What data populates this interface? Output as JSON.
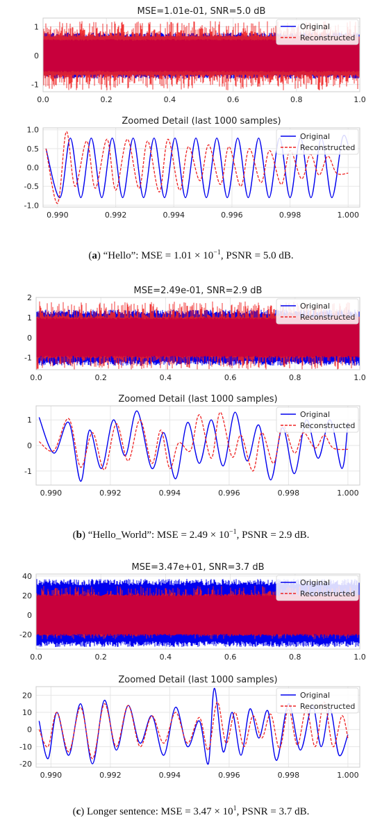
{
  "legend": {
    "original": "Original",
    "reconstructed": "Reconstructed"
  },
  "colors": {
    "original": "#0000ee",
    "reconstructed": "#ee2222",
    "overlap": "#c8003c",
    "grid": "#e6e6e6"
  },
  "panels": [
    {
      "caption": {
        "letter": "a",
        "text": "“Hello”: MSE = 1.01 × 10",
        "exp": "−1",
        "text2": ", PSNR = 5.0 dB."
      },
      "chart_data": [
        {
          "type": "line",
          "title": "MSE=1.01e-01, SNR=5.0 dB",
          "xlim": [
            0,
            1
          ],
          "ylim": [
            -1.25,
            1.3
          ],
          "xticks": [
            "0.0",
            "0.2",
            "0.4",
            "0.6",
            "0.8",
            "1.0"
          ],
          "yticks": [
            "-1",
            "0",
            "1"
          ],
          "ytick_values": [
            -1,
            0,
            1
          ],
          "xtick_values": [
            0,
            0.2,
            0.4,
            0.6,
            0.8,
            1.0
          ],
          "grid": true,
          "legend": "top-right",
          "series": [
            {
              "name": "Original",
              "amplitude_range": [
                -0.8,
                0.8
              ]
            },
            {
              "name": "Reconstructed",
              "amplitude_range": [
                -1.2,
                1.2
              ]
            }
          ]
        },
        {
          "type": "line",
          "title": "Zoomed Detail (last 1000 samples)",
          "xlim": [
            0.9895,
            1.0004
          ],
          "ylim": [
            -1.05,
            1.05
          ],
          "xticks": [
            "0.990",
            "0.992",
            "0.994",
            "0.996",
            "0.998",
            "1.000"
          ],
          "xtick_values": [
            0.99,
            0.992,
            0.994,
            0.996,
            0.998,
            1.0
          ],
          "yticks": [
            "1.0",
            "0.5",
            "0.0",
            "-0.5",
            "-1.0"
          ],
          "ytick_values": [
            1.0,
            0.5,
            0.0,
            -0.5,
            -1.0
          ],
          "grid": true,
          "legend": "top-right",
          "series": [
            {
              "name": "Original",
              "x": [
                0.9896,
                0.99008,
                0.99044,
                0.9908,
                0.99116,
                0.99152,
                0.99188,
                0.99224,
                0.9926,
                0.99296,
                0.99332,
                0.99368,
                0.99404,
                0.9944,
                0.99476,
                0.99512,
                0.99548,
                0.99584,
                0.9962,
                0.99656,
                0.99692,
                0.99728,
                0.99764,
                0.998,
                0.99836,
                0.99872,
                0.99908,
                0.99944,
                0.9998,
                1.0
              ],
              "y": [
                0.5,
                -0.8,
                0.78,
                -0.8,
                0.78,
                -0.8,
                0.78,
                -0.8,
                0.78,
                -0.8,
                0.78,
                -0.8,
                0.78,
                -0.8,
                0.78,
                -0.8,
                0.78,
                -0.8,
                0.78,
                -0.8,
                0.78,
                -0.8,
                0.78,
                -0.8,
                0.78,
                -0.8,
                0.78,
                -0.8,
                0.78,
                0.6
              ]
            },
            {
              "name": "Reconstructed",
              "x": [
                0.9896,
                0.99,
                0.9903,
                0.9906,
                0.991,
                0.9913,
                0.9917,
                0.992,
                0.9924,
                0.9928,
                0.9931,
                0.9935,
                0.9938,
                0.9942,
                0.9945,
                0.9949,
                0.9952,
                0.9956,
                0.9959,
                0.9963,
                0.9966,
                0.997,
                0.9973,
                0.9977,
                0.998,
                0.9984,
                0.9987,
                0.999,
                0.9993,
                0.9996,
                1.0
              ],
              "y": [
                0.5,
                -0.95,
                0.95,
                -0.5,
                0.7,
                -0.55,
                0.75,
                -0.6,
                0.75,
                -0.55,
                0.7,
                -0.65,
                0.75,
                -0.6,
                0.55,
                -0.35,
                0.6,
                -0.45,
                0.55,
                -0.5,
                0.5,
                -0.4,
                0.45,
                -0.45,
                0.45,
                -0.3,
                0.35,
                -0.2,
                0.3,
                -0.15,
                -0.15
              ]
            }
          ]
        }
      ]
    },
    {
      "caption": {
        "letter": "b",
        "text": "“Hello_World”: MSE = 2.49 × 10",
        "exp": "−1",
        "text2": ", PSNR = 2.9 dB."
      },
      "chart_data": [
        {
          "type": "line",
          "title": "MSE=2.49e-01, SNR=2.9 dB",
          "xlim": [
            0,
            1
          ],
          "ylim": [
            -1.6,
            2.0
          ],
          "xticks": [
            "0.0",
            "0.2",
            "0.4",
            "0.6",
            "0.8",
            "1.0"
          ],
          "xtick_values": [
            0,
            0.2,
            0.4,
            0.6,
            0.8,
            1.0
          ],
          "yticks": [
            "2",
            "1",
            "0",
            "-1"
          ],
          "ytick_values": [
            2,
            1,
            0,
            -1
          ],
          "grid": true,
          "legend": "top-right",
          "series": [
            {
              "name": "Original",
              "amplitude_range": [
                -1.4,
                1.4
              ]
            },
            {
              "name": "Reconstructed",
              "amplitude_range": [
                -1.6,
                1.8
              ]
            }
          ]
        },
        {
          "type": "line",
          "title": "Zoomed Detail (last 1000 samples)",
          "xlim": [
            0.9895,
            1.0004
          ],
          "ylim": [
            -1.55,
            1.55
          ],
          "xticks": [
            "0.990",
            "0.992",
            "0.994",
            "0.996",
            "0.998",
            "1.000"
          ],
          "xtick_values": [
            0.99,
            0.992,
            0.994,
            0.996,
            0.998,
            1.0
          ],
          "yticks": [
            "1",
            "0",
            "-1"
          ],
          "ytick_values": [
            1,
            0,
            -1
          ],
          "grid": true,
          "legend": "top-right",
          "series": [
            {
              "name": "Original",
              "x": [
                0.9896,
                0.9901,
                0.9906,
                0.991,
                0.9913,
                0.9917,
                0.9921,
                0.9925,
                0.9929,
                0.9934,
                0.9938,
                0.9942,
                0.9946,
                0.995,
                0.9954,
                0.9958,
                0.9962,
                0.9966,
                0.997,
                0.9974,
                0.9978,
                0.9982,
                0.9986,
                0.999,
                0.9994,
                0.9998,
                1.0
              ],
              "y": [
                1.1,
                -0.3,
                0.9,
                -1.4,
                0.6,
                -0.9,
                1.0,
                -0.4,
                1.35,
                -0.9,
                0.5,
                -1.3,
                0.9,
                -0.7,
                1.0,
                -0.8,
                1.3,
                -0.6,
                0.8,
                -1.35,
                0.7,
                -1.1,
                1.0,
                -0.5,
                1.0,
                -0.9,
                0.9
              ]
            },
            {
              "name": "Reconstructed",
              "x": [
                0.9896,
                0.9901,
                0.9906,
                0.991,
                0.9914,
                0.9918,
                0.9922,
                0.9926,
                0.993,
                0.9934,
                0.9937,
                0.994,
                0.9943,
                0.9947,
                0.995,
                0.9954,
                0.9957,
                0.9961,
                0.9964,
                0.9968,
                0.9971,
                0.9975,
                0.9978,
                0.9982,
                0.9985,
                0.9989,
                0.9992,
                0.9995,
                1.0
              ],
              "y": [
                0.15,
                -0.2,
                1.05,
                -0.85,
                0.5,
                -0.95,
                0.85,
                -0.6,
                1.0,
                -0.7,
                0.6,
                -0.9,
                0.1,
                -0.2,
                1.2,
                -0.5,
                1.3,
                -0.45,
                0.4,
                -1.0,
                0.5,
                -0.7,
                0.8,
                -0.3,
                0.5,
                -0.1,
                0.4,
                -0.1,
                -0.15
              ]
            }
          ]
        }
      ]
    },
    {
      "caption": {
        "letter": "c",
        "text": "Longer sentence: MSE = 3.47 × 10",
        "exp": "1",
        "text2": ", PSNR = 3.7 dB."
      },
      "chart_data": [
        {
          "type": "line",
          "title": "MSE=3.47e+01, SNR=3.7 dB",
          "xlim": [
            0,
            1
          ],
          "ylim": [
            -35,
            42
          ],
          "xticks": [
            "0.0",
            "0.2",
            "0.4",
            "0.6",
            "0.8",
            "1.0"
          ],
          "xtick_values": [
            0,
            0.2,
            0.4,
            0.6,
            0.8,
            1.0
          ],
          "yticks": [
            "40",
            "20",
            "0",
            "-20"
          ],
          "ytick_values": [
            40,
            20,
            0,
            -20
          ],
          "grid": true,
          "legend": "top-right",
          "series": [
            {
              "name": "Original",
              "amplitude_range": [
                -33,
                37
              ]
            },
            {
              "name": "Reconstructed",
              "amplitude_range": [
                -25,
                30
              ]
            }
          ]
        },
        {
          "type": "line",
          "title": "Zoomed Detail (last 1000 samples)",
          "xlim": [
            0.9895,
            1.0004
          ],
          "ylim": [
            -22,
            25
          ],
          "xticks": [
            "0.990",
            "0.992",
            "0.994",
            "0.996",
            "0.998",
            "1.000"
          ],
          "xtick_values": [
            0.99,
            0.992,
            0.994,
            0.996,
            0.998,
            1.0
          ],
          "yticks": [
            "20",
            "10",
            "0",
            "-10",
            "-20"
          ],
          "ytick_values": [
            20,
            10,
            0,
            -10,
            -20
          ],
          "grid": true,
          "legend": "top-right",
          "series": [
            {
              "name": "Original",
              "x": [
                0.9896,
                0.9899,
                0.9902,
                0.9906,
                0.991,
                0.9914,
                0.9918,
                0.9922,
                0.9926,
                0.993,
                0.9934,
                0.9938,
                0.9942,
                0.9946,
                0.995,
                0.9953,
                0.9955,
                0.9958,
                0.9961,
                0.9964,
                0.9967,
                0.997,
                0.9973,
                0.9976,
                0.998,
                0.9984,
                0.9988,
                0.9991,
                0.9994,
                0.9997,
                1.0
              ],
              "y": [
                5,
                -17,
                10,
                -15,
                15,
                -20,
                17,
                -12,
                14,
                -8,
                8,
                -15,
                13,
                -10,
                5,
                -20,
                24,
                -13,
                10,
                -15,
                12,
                -5,
                11,
                -18,
                15,
                -12,
                14,
                -10,
                12,
                -15,
                -3
              ]
            },
            {
              "name": "Reconstructed",
              "x": [
                0.9896,
                0.9899,
                0.9902,
                0.9906,
                0.991,
                0.9914,
                0.9918,
                0.9922,
                0.9926,
                0.993,
                0.9934,
                0.9938,
                0.9942,
                0.9946,
                0.995,
                0.9953,
                0.9956,
                0.9959,
                0.9962,
                0.9965,
                0.9968,
                0.9971,
                0.9974,
                0.9977,
                0.998,
                0.9983,
                0.9986,
                0.9989,
                0.9992,
                0.9995,
                0.9998,
                1.0
              ],
              "y": [
                0,
                -10,
                10,
                -13,
                13,
                -17,
                15,
                -10,
                14,
                -10,
                8,
                -8,
                10,
                -8,
                7,
                -12,
                16,
                -8,
                10,
                -10,
                8,
                -5,
                9,
                -11,
                12,
                -9,
                12,
                -10,
                16,
                -10,
                8,
                -5
              ]
            }
          ]
        }
      ]
    }
  ]
}
